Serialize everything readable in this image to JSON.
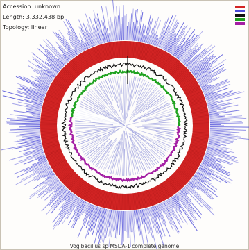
{
  "info": {
    "accession": "Accession: unknown",
    "length": "Length: 3,332,438 bp",
    "topology": "Topology: linear"
  },
  "caption": "Vogibacillus sp MSDA-1 complete genome",
  "colors": {
    "feature_ring": "#4a4ad8",
    "cds_ring": "#d32424",
    "gc_content": "#111111",
    "gc_skew_plus": "#1fa21f",
    "gc_skew_minus": "#a41fa4"
  },
  "legend": [
    {
      "name": "legend-item-1",
      "color": "#d32424"
    },
    {
      "name": "legend-item-2",
      "color": "#4a4ad8"
    },
    {
      "name": "legend-item-3",
      "color": "#111111"
    },
    {
      "name": "legend-item-4",
      "color": "#1fa21f"
    },
    {
      "name": "legend-item-5",
      "color": "#a41fa4"
    }
  ]
}
